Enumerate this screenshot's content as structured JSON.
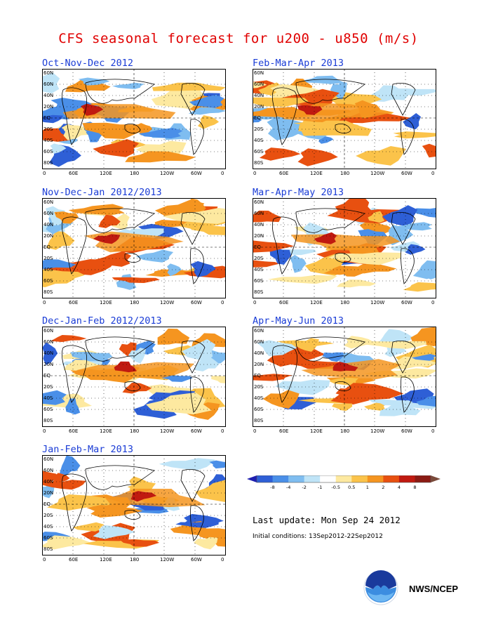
{
  "title": "CFS seasonal forecast for u200 - u850 (m/s)",
  "lat_labels": [
    "60N",
    "60N",
    "40N",
    "20N",
    "EQ",
    "20S",
    "40S",
    "60S",
    "80S"
  ],
  "lon_labels": [
    "0",
    "60E",
    "120E",
    "180",
    "120W",
    "60W",
    "0"
  ],
  "panels": [
    {
      "title": "Oct-Nov-Dec 2012"
    },
    {
      "title": "Feb-Mar-Apr 2013"
    },
    {
      "title": "Nov-Dec-Jan 2012/2013"
    },
    {
      "title": "Mar-Apr-May 2013"
    },
    {
      "title": "Dec-Jan-Feb 2012/2013"
    },
    {
      "title": "Apr-May-Jun 2013"
    },
    {
      "title": "Jan-Feb-Mar 2013"
    }
  ],
  "colorbar": {
    "ticks": [
      "-8",
      "-4",
      "-2",
      "-1",
      "-0.5",
      "0.5",
      "1",
      "2",
      "4",
      "8"
    ],
    "colors": [
      "#1f1fb0",
      "#2e5fd6",
      "#4a8fe8",
      "#7fbdf0",
      "#bfe4f7",
      "#ffffff",
      "#fde9a0",
      "#fbc34a",
      "#f59520",
      "#e85010",
      "#c01a10",
      "#8b1b14",
      "#7a4a3a"
    ]
  },
  "footer": {
    "last_update": "Last update: Mon Sep 24 2012",
    "initial_conditions": "Initial conditions: 13Sep2012-22Sep2012",
    "agency": "NWS/NCEP"
  }
}
